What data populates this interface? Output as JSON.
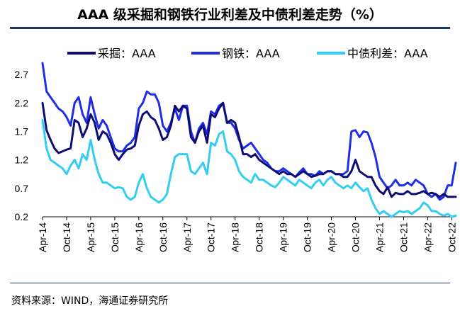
{
  "chart_data": {
    "type": "line",
    "title": "AAA 级采掘和钢铁行业利差及中债利差走势（%）",
    "source": "资料来源：WIND，海通证券研究所",
    "ylim": [
      0.2,
      2.95
    ],
    "yticks": [
      "0.2",
      "0.7",
      "1.2",
      "1.7",
      "2.2",
      "2.7"
    ],
    "xticks": [
      "Apr-14",
      "Oct-14",
      "Apr-15",
      "Oct-15",
      "Apr-16",
      "Oct-16",
      "Apr-17",
      "Oct-17",
      "Apr-18",
      "Oct-18",
      "Apr-19",
      "Oct-19",
      "Apr-20",
      "Oct-20",
      "Apr-21",
      "Oct-21",
      "Apr-22",
      "Oct-22"
    ],
    "x_months": [
      "2014-04",
      "2014-05",
      "2014-06",
      "2014-07",
      "2014-08",
      "2014-09",
      "2014-10",
      "2014-11",
      "2014-12",
      "2015-01",
      "2015-02",
      "2015-03",
      "2015-04",
      "2015-05",
      "2015-06",
      "2015-07",
      "2015-08",
      "2015-09",
      "2015-10",
      "2015-11",
      "2015-12",
      "2016-01",
      "2016-02",
      "2016-03",
      "2016-04",
      "2016-05",
      "2016-06",
      "2016-07",
      "2016-08",
      "2016-09",
      "2016-10",
      "2016-11",
      "2016-12",
      "2017-01",
      "2017-02",
      "2017-03",
      "2017-04",
      "2017-05",
      "2017-06",
      "2017-07",
      "2017-08",
      "2017-09",
      "2017-10",
      "2017-11",
      "2017-12",
      "2018-01",
      "2018-02",
      "2018-03",
      "2018-04",
      "2018-05",
      "2018-06",
      "2018-07",
      "2018-08",
      "2018-09",
      "2018-10",
      "2018-11",
      "2018-12",
      "2019-01",
      "2019-02",
      "2019-03",
      "2019-04",
      "2019-05",
      "2019-06",
      "2019-07",
      "2019-08",
      "2019-09",
      "2019-10",
      "2019-11",
      "2019-12",
      "2020-01",
      "2020-02",
      "2020-03",
      "2020-04",
      "2020-05",
      "2020-06",
      "2020-07",
      "2020-08",
      "2020-09",
      "2020-10",
      "2020-11",
      "2020-12",
      "2021-01",
      "2021-02",
      "2021-03",
      "2021-04",
      "2021-05",
      "2021-06",
      "2021-07",
      "2021-08",
      "2021-09",
      "2021-10",
      "2021-11",
      "2021-12",
      "2022-01",
      "2022-02",
      "2022-03",
      "2022-04",
      "2022-05",
      "2022-06",
      "2022-07",
      "2022-08",
      "2022-09",
      "2022-10",
      "2022-11"
    ],
    "series": [
      {
        "name": "采掘：AAA",
        "color": "#0d0d73",
        "values": [
          2.2,
          1.72,
          1.55,
          1.4,
          1.32,
          1.35,
          1.38,
          1.4,
          1.9,
          1.85,
          1.6,
          1.75,
          2.0,
          1.85,
          1.55,
          1.7,
          1.65,
          1.5,
          1.3,
          1.2,
          1.3,
          1.38,
          1.4,
          1.45,
          1.8,
          2.0,
          2.05,
          1.95,
          1.9,
          1.75,
          1.55,
          1.6,
          1.8,
          2.15,
          2.05,
          2.15,
          2.1,
          1.6,
          1.5,
          1.7,
          1.8,
          1.5,
          2.0,
          1.95,
          2.1,
          2.2,
          1.85,
          1.9,
          1.85,
          1.6,
          1.3,
          1.3,
          1.25,
          1.3,
          1.2,
          1.15,
          1.1,
          1.05,
          1.0,
          0.95,
          1.0,
          0.95,
          0.95,
          0.9,
          0.95,
          1.0,
          0.95,
          0.9,
          0.92,
          0.95,
          0.95,
          1.0,
          1.0,
          0.95,
          0.95,
          0.9,
          0.9,
          1.0,
          1.2,
          1.0,
          0.95,
          0.9,
          0.9,
          0.75,
          0.65,
          0.6,
          0.72,
          0.55,
          0.62,
          0.6,
          0.6,
          0.65,
          0.6,
          0.6,
          0.62,
          0.65,
          0.6,
          0.62,
          0.6,
          0.55,
          0.6,
          0.55,
          0.55,
          0.55
        ]
      },
      {
        "name": "钢铁：AAA",
        "color": "#1f2ee6",
        "values": [
          2.9,
          2.4,
          2.3,
          2.2,
          2.1,
          2.05,
          1.95,
          1.8,
          2.2,
          2.3,
          2.0,
          1.85,
          2.3,
          2.0,
          1.75,
          1.9,
          1.8,
          1.6,
          1.4,
          1.35,
          1.35,
          1.45,
          1.5,
          1.6,
          2.1,
          2.2,
          2.4,
          2.35,
          2.35,
          2.2,
          1.8,
          1.7,
          1.85,
          2.1,
          1.9,
          2.15,
          2.15,
          1.7,
          1.5,
          1.75,
          1.85,
          1.65,
          2.05,
          2.0,
          2.15,
          2.2,
          1.85,
          1.85,
          1.75,
          1.55,
          1.4,
          1.45,
          1.5,
          1.4,
          1.3,
          1.2,
          1.15,
          1.05,
          1.0,
          1.0,
          1.05,
          1.0,
          0.95,
          0.9,
          0.98,
          1.05,
          0.95,
          0.95,
          0.92,
          1.0,
          0.95,
          1.0,
          1.0,
          0.95,
          0.95,
          0.95,
          1.0,
          1.7,
          1.72,
          1.6,
          1.7,
          1.68,
          1.5,
          1.25,
          0.9,
          0.8,
          0.7,
          0.75,
          0.85,
          0.75,
          0.75,
          0.8,
          0.75,
          0.85,
          0.8,
          0.75,
          0.6,
          0.55,
          0.6,
          0.5,
          0.55,
          0.75,
          0.75,
          1.15
        ]
      },
      {
        "name": "中债利差：AAA",
        "color": "#33ccf2",
        "values": [
          1.9,
          1.4,
          1.2,
          1.15,
          1.1,
          1.05,
          0.95,
          1.1,
          1.2,
          1.05,
          1.3,
          1.2,
          1.55,
          1.2,
          0.95,
          0.8,
          0.8,
          0.75,
          0.7,
          0.72,
          0.7,
          0.55,
          0.5,
          0.55,
          0.8,
          0.95,
          0.7,
          0.55,
          0.5,
          0.45,
          0.5,
          0.6,
          0.95,
          1.25,
          1.3,
          1.3,
          1.3,
          1.0,
          0.95,
          1.05,
          1.15,
          0.95,
          1.5,
          1.45,
          1.65,
          1.7,
          1.35,
          1.3,
          1.2,
          1.0,
          0.9,
          0.85,
          0.8,
          0.95,
          0.85,
          0.85,
          0.8,
          0.75,
          0.72,
          0.8,
          0.9,
          0.85,
          0.8,
          0.75,
          0.85,
          0.8,
          0.75,
          0.7,
          0.8,
          0.85,
          0.75,
          0.85,
          0.9,
          0.8,
          0.75,
          0.7,
          0.75,
          0.7,
          0.8,
          0.72,
          0.65,
          0.7,
          0.5,
          0.35,
          0.25,
          0.3,
          0.25,
          0.2,
          0.25,
          0.3,
          0.28,
          0.3,
          0.25,
          0.3,
          0.35,
          0.45,
          0.4,
          0.3,
          0.3,
          0.25,
          0.22,
          0.25,
          0.2,
          0.22
        ]
      }
    ]
  }
}
